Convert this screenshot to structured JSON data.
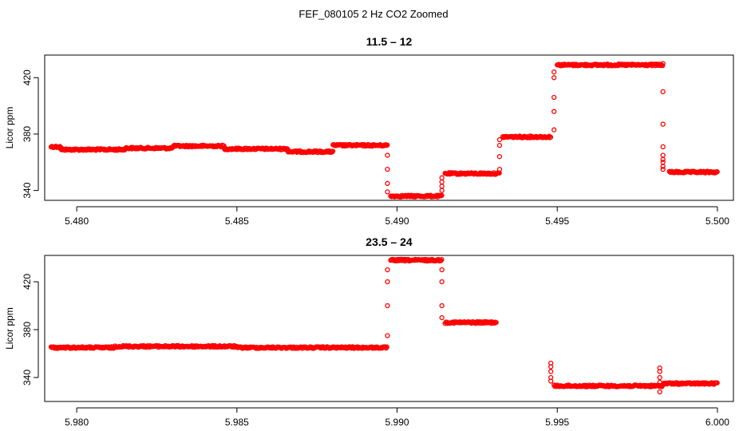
{
  "figure": {
    "title": "FEF_080105 2 Hz CO2 Zoomed"
  },
  "chart_data": [
    {
      "type": "scatter",
      "title": "11.5 – 12",
      "xlabel": "",
      "ylabel": "Licor ppm",
      "xlim": [
        5.479,
        5.5005
      ],
      "ylim": [
        333,
        436
      ],
      "xticks": [
        5.48,
        5.485,
        5.49,
        5.495,
        5.5
      ],
      "xtick_labels": [
        "5.480",
        "5.485",
        "5.490",
        "5.495",
        "5.500"
      ],
      "yticks": [
        340,
        380,
        420
      ],
      "ytick_labels": [
        "340",
        "380",
        "420"
      ],
      "marker": "open-circle",
      "color": "#ff0000",
      "grid": false,
      "segments": [
        {
          "x0": 5.4792,
          "x1": 5.4795,
          "y": 371
        },
        {
          "x0": 5.4795,
          "x1": 5.4815,
          "y": 369
        },
        {
          "x0": 5.4815,
          "x1": 5.483,
          "y": 370
        },
        {
          "x0": 5.483,
          "x1": 5.4846,
          "y": 371.5
        },
        {
          "x0": 5.4846,
          "x1": 5.4866,
          "y": 369.5
        },
        {
          "x0": 5.4866,
          "x1": 5.488,
          "y": 367.5
        },
        {
          "x0": 5.488,
          "x1": 5.4897,
          "y": 372
        },
        {
          "x0": 5.4898,
          "x1": 5.4914,
          "y": 336
        },
        {
          "x0": 5.4915,
          "x1": 5.4932,
          "y": 352
        },
        {
          "x0": 5.4933,
          "x1": 5.4948,
          "y": 378
        },
        {
          "x0": 5.495,
          "x1": 5.4983,
          "y": 429
        },
        {
          "x0": 5.4985,
          "x1": 5.5,
          "y": 353
        }
      ],
      "transitions": [
        {
          "x": 5.4897,
          "y": [
            365,
            355,
            345,
            339
          ]
        },
        {
          "x": 5.4914,
          "y": [
            340,
            343,
            346,
            349
          ]
        },
        {
          "x": 5.4932,
          "y": [
            355,
            364,
            372,
            376
          ]
        },
        {
          "x": 5.4949,
          "y": [
            383,
            396,
            406,
            420,
            424
          ]
        },
        {
          "x": 5.4983,
          "y": [
            430,
            410,
            387,
            371,
            365,
            362,
            360,
            357,
            355
          ]
        }
      ]
    },
    {
      "type": "scatter",
      "title": "23.5 – 24",
      "xlabel": "",
      "ylabel": "Licor ppm",
      "xlim": [
        5.979,
        6.0005
      ],
      "ylim": [
        320,
        442
      ],
      "xticks": [
        5.98,
        5.985,
        5.99,
        5.995,
        6.0
      ],
      "xtick_labels": [
        "5.980",
        "5.985",
        "5.990",
        "5.995",
        "6.000"
      ],
      "yticks": [
        340,
        380,
        420
      ],
      "ytick_labels": [
        "340",
        "380",
        "420"
      ],
      "marker": "open-circle",
      "color": "#ff0000",
      "grid": false,
      "segments": [
        {
          "x0": 5.9792,
          "x1": 5.9812,
          "y": 365
        },
        {
          "x0": 5.9812,
          "x1": 5.985,
          "y": 366
        },
        {
          "x0": 5.985,
          "x1": 5.9897,
          "y": 365
        },
        {
          "x0": 5.9898,
          "x1": 5.9914,
          "y": 438
        },
        {
          "x0": 5.9915,
          "x1": 5.9931,
          "y": 386
        },
        {
          "x0": 5.9949,
          "x1": 5.9983,
          "y": 333
        },
        {
          "x0": 5.9983,
          "x1": 6.0,
          "y": 335
        }
      ],
      "transitions": [
        {
          "x": 5.9897,
          "y": [
            375,
            400,
            420,
            430
          ]
        },
        {
          "x": 5.9914,
          "y": [
            430,
            420,
            400,
            390
          ]
        },
        {
          "x": 5.9948,
          "y": [
            352,
            349,
            345,
            340,
            337
          ]
        },
        {
          "x": 5.9982,
          "y": [
            328,
            336,
            340,
            345,
            348
          ]
        }
      ]
    }
  ]
}
